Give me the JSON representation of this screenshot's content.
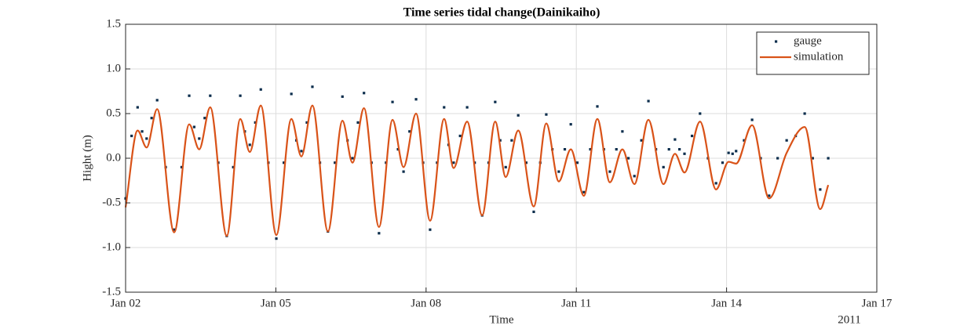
{
  "chart_data": {
    "type": "line",
    "title": "Time series tidal change(Dainikaiho)",
    "xlabel": "Time",
    "ylabel": "Hight (m)",
    "x_annotation": "2011",
    "xlim": [
      2,
      17
    ],
    "xticks": [
      {
        "value": 2,
        "label": "Jan 02"
      },
      {
        "value": 5,
        "label": "Jan 05"
      },
      {
        "value": 8,
        "label": "Jan 08"
      },
      {
        "value": 11,
        "label": "Jan 11"
      },
      {
        "value": 14,
        "label": "Jan 14"
      },
      {
        "value": 17,
        "label": "Jan 17"
      }
    ],
    "ylim": [
      -1.5,
      1.5
    ],
    "yticks": [
      -1.5,
      {
        "value": -1,
        "label": "-1.0"
      },
      -0.5,
      {
        "value": 0,
        "label": "0.0"
      },
      0.5,
      {
        "value": 1,
        "label": "1.0"
      },
      1.5
    ],
    "grid": true,
    "legend": "northeast",
    "series": [
      {
        "name": "gauge",
        "color": "#0b2d4c",
        "mode": "markers",
        "x": [
          2.0,
          2.12,
          2.24,
          2.33,
          2.42,
          2.52,
          2.63,
          2.8,
          2.97,
          3.12,
          3.27,
          3.37,
          3.47,
          3.58,
          3.69,
          3.85,
          4.02,
          4.15,
          4.29,
          4.38,
          4.48,
          4.59,
          4.7,
          4.85,
          5.01,
          5.16,
          5.31,
          5.41,
          5.51,
          5.62,
          5.73,
          5.88,
          6.04,
          6.18,
          6.33,
          6.43,
          6.53,
          6.64,
          6.76,
          6.91,
          7.06,
          7.2,
          7.33,
          7.44,
          7.55,
          7.67,
          7.8,
          7.94,
          8.08,
          8.22,
          8.36,
          8.45,
          8.55,
          8.68,
          8.82,
          8.97,
          9.12,
          9.25,
          9.38,
          9.48,
          9.59,
          9.71,
          9.84,
          10.0,
          10.15,
          10.28,
          10.4,
          10.52,
          10.65,
          10.77,
          10.89,
          11.02,
          11.15,
          11.28,
          11.42,
          11.55,
          11.67,
          11.8,
          11.92,
          12.04,
          12.16,
          12.3,
          12.44,
          12.59,
          12.74,
          12.85,
          12.97,
          13.06,
          13.16,
          13.31,
          13.47,
          13.63,
          13.79,
          13.92,
          14.04,
          14.12,
          14.19,
          14.35,
          14.51,
          14.68,
          14.85,
          15.02,
          15.2,
          15.38,
          15.56,
          15.72,
          15.87,
          16.03
        ],
        "values": [
          -0.45,
          0.25,
          0.57,
          0.3,
          0.22,
          0.45,
          0.65,
          -0.1,
          -0.8,
          -0.1,
          0.7,
          0.35,
          0.22,
          0.45,
          0.7,
          -0.05,
          -0.87,
          -0.1,
          0.7,
          0.3,
          0.15,
          0.4,
          0.77,
          -0.05,
          -0.9,
          -0.05,
          0.72,
          0.2,
          0.08,
          0.4,
          0.8,
          -0.05,
          -0.82,
          -0.05,
          0.69,
          0.2,
          0.0,
          0.4,
          0.73,
          -0.05,
          -0.84,
          -0.05,
          0.63,
          0.1,
          -0.15,
          0.3,
          0.66,
          -0.05,
          -0.8,
          -0.05,
          0.57,
          0.15,
          -0.05,
          0.25,
          0.57,
          -0.05,
          -0.64,
          -0.05,
          0.63,
          0.2,
          -0.1,
          0.2,
          0.48,
          -0.05,
          -0.6,
          -0.05,
          0.49,
          0.1,
          -0.15,
          0.1,
          0.38,
          -0.05,
          -0.38,
          0.1,
          0.58,
          0.1,
          -0.15,
          0.1,
          0.3,
          0.0,
          -0.2,
          0.2,
          0.64,
          0.1,
          -0.1,
          0.1,
          0.21,
          0.1,
          0.05,
          0.25,
          0.5,
          0.0,
          -0.28,
          -0.05,
          0.06,
          0.05,
          0.08,
          0.2,
          0.43,
          0.0,
          -0.42,
          0.0,
          0.2,
          0.25,
          0.5,
          0.0,
          -0.35,
          0.0
        ]
      },
      {
        "name": "simulation",
        "color": "#d95319",
        "mode": "lines",
        "x": [
          2.0,
          2.24,
          2.42,
          2.63,
          2.97,
          3.27,
          3.47,
          3.69,
          4.02,
          4.29,
          4.48,
          4.7,
          5.01,
          5.31,
          5.51,
          5.73,
          6.04,
          6.33,
          6.53,
          6.76,
          7.06,
          7.33,
          7.55,
          7.8,
          8.08,
          8.36,
          8.55,
          8.82,
          9.12,
          9.38,
          9.59,
          9.84,
          10.15,
          10.4,
          10.65,
          10.89,
          11.15,
          11.42,
          11.67,
          11.92,
          12.16,
          12.44,
          12.74,
          12.97,
          13.16,
          13.47,
          13.79,
          14.04,
          14.19,
          14.51,
          14.85,
          15.2,
          15.56,
          15.87,
          16.03
        ],
        "values": [
          -0.55,
          0.31,
          0.12,
          0.55,
          -0.83,
          0.38,
          0.1,
          0.57,
          -0.87,
          0.44,
          0.07,
          0.59,
          -0.86,
          0.44,
          0.02,
          0.59,
          -0.82,
          0.42,
          -0.05,
          0.56,
          -0.77,
          0.43,
          -0.1,
          0.5,
          -0.7,
          0.44,
          -0.11,
          0.41,
          -0.64,
          0.41,
          -0.21,
          0.31,
          -0.54,
          0.39,
          -0.26,
          0.1,
          -0.42,
          0.44,
          -0.27,
          0.1,
          -0.29,
          0.43,
          -0.29,
          0.05,
          -0.16,
          0.41,
          -0.35,
          -0.04,
          -0.06,
          0.37,
          -0.45,
          0.06,
          0.35,
          -0.57,
          -0.3
        ]
      }
    ]
  }
}
